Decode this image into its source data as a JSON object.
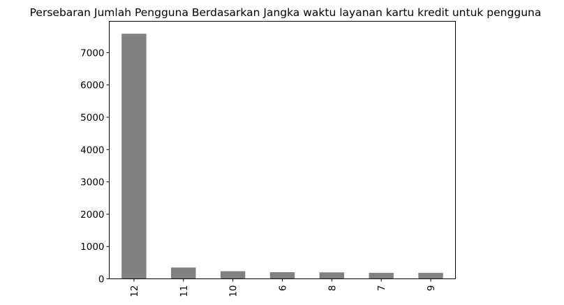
{
  "chart_data": {
    "type": "bar",
    "title": "Persebaran Jumlah Pengguna Berdasarkan Jangka waktu layanan kartu kredit untuk pengguna",
    "xlabel": "",
    "ylabel": "",
    "categories": [
      "12",
      "11",
      "10",
      "6",
      "8",
      "7",
      "9"
    ],
    "values": [
      7585,
      350,
      235,
      205,
      200,
      185,
      185
    ],
    "y_ticks": [
      0,
      1000,
      2000,
      3000,
      4000,
      5000,
      6000,
      7000
    ],
    "ylim": [
      0,
      7970
    ],
    "bar_color": "#808080",
    "x_tick_rotation": "vertical",
    "grid": false,
    "legend": "none"
  }
}
